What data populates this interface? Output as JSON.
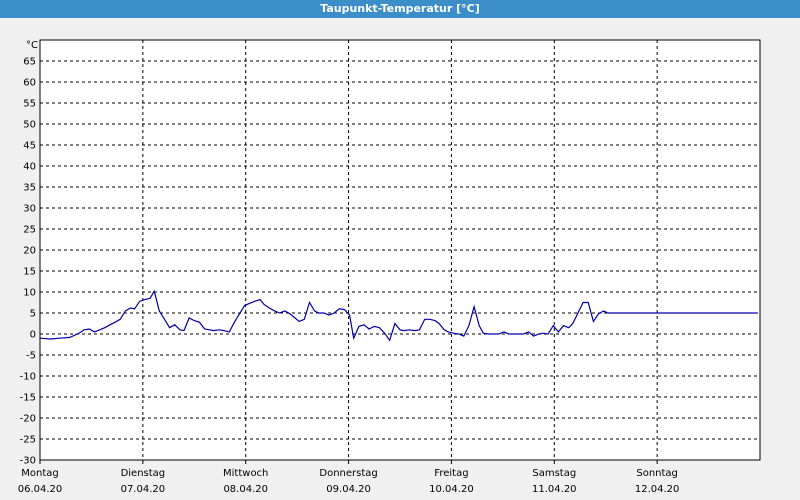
{
  "window": {
    "title": "Taupunkt-Temperatur [°C]"
  },
  "chart_data": {
    "type": "line",
    "title": "Taupunkt-Temperatur [°C]",
    "ylabel": "°C",
    "xlabel": "",
    "ylim": [
      -30,
      70
    ],
    "yticks": [
      -30,
      -25,
      -20,
      -15,
      -10,
      -5,
      0,
      5,
      10,
      15,
      20,
      25,
      30,
      35,
      40,
      45,
      50,
      55,
      60,
      65
    ],
    "xlim": [
      0,
      7
    ],
    "grid": true,
    "line_color": "#0000aa",
    "x_tick_labels": [
      {
        "x": 0,
        "day": "Montag",
        "date": "06.04.20"
      },
      {
        "x": 1,
        "day": "Dienstag",
        "date": "07.04.20"
      },
      {
        "x": 2,
        "day": "Mittwoch",
        "date": "08.04.20"
      },
      {
        "x": 3,
        "day": "Donnerstag",
        "date": "09.04.20"
      },
      {
        "x": 4,
        "day": "Freitag",
        "date": "10.04.20"
      },
      {
        "x": 5,
        "day": "Samstag",
        "date": "11.04.20"
      },
      {
        "x": 6,
        "day": "Sonntag",
        "date": "12.04.20"
      }
    ],
    "series": [
      {
        "x": [
          0.0,
          0.1,
          0.19,
          0.29,
          0.38,
          0.43,
          0.48,
          0.53,
          0.58,
          0.63,
          0.68,
          0.73,
          0.78,
          0.83,
          0.88,
          0.92,
          0.97,
          1.02,
          1.07,
          1.11,
          1.16,
          1.21,
          1.26,
          1.31,
          1.36,
          1.4,
          1.45,
          1.5,
          1.55,
          1.6,
          1.65,
          1.69,
          1.74,
          1.79,
          1.84,
          1.89,
          1.94,
          1.99,
          2.04,
          2.09,
          2.14,
          2.18,
          2.23,
          2.28,
          2.33,
          2.38,
          2.43,
          2.48,
          2.52,
          2.57,
          2.62,
          2.67,
          2.71,
          2.76,
          2.81,
          2.86,
          2.91,
          2.96,
          3.01,
          3.05,
          3.1,
          3.15,
          3.2,
          3.25,
          3.3,
          3.35,
          3.4,
          3.45,
          3.5,
          3.54,
          3.59,
          3.64,
          3.69,
          3.74,
          3.79,
          3.84,
          3.88,
          3.93,
          3.97,
          4.02,
          4.07,
          4.12,
          4.17,
          4.22,
          4.27,
          4.31,
          4.36,
          4.41,
          4.46,
          4.51,
          4.56,
          4.6,
          4.65,
          4.7,
          4.75,
          4.8,
          4.85,
          4.89,
          4.94,
          4.99,
          5.04,
          5.09,
          5.14,
          5.18,
          5.23,
          5.28,
          5.33,
          5.38,
          5.43,
          5.48,
          5.52,
          5.57,
          5.62,
          5.67,
          5.72,
          5.77,
          5.82,
          5.86,
          5.91,
          5.96,
          6.01,
          6.06,
          6.11,
          6.15,
          6.2,
          6.25,
          6.3,
          6.35,
          6.4,
          6.44,
          6.49,
          6.54,
          6.59,
          6.64,
          6.69,
          6.74,
          6.78,
          6.83,
          6.88,
          6.93,
          6.98
        ],
        "y": [
          -1.0,
          -1.2,
          -1.0,
          -0.8,
          0.2,
          1.0,
          1.2,
          0.5,
          1.0,
          1.5,
          2.2,
          2.8,
          3.5,
          5.5,
          6.2,
          6.0,
          7.8,
          8.2,
          8.5,
          10.2,
          5.5,
          3.5,
          1.5,
          2.2,
          1.0,
          0.8,
          3.8,
          3.2,
          2.8,
          1.2,
          1.0,
          0.8,
          1.0,
          0.8,
          0.5,
          2.8,
          4.8,
          6.8,
          7.3,
          7.8,
          8.2,
          7.0,
          6.2,
          5.5,
          5.0,
          5.5,
          4.8,
          3.8,
          3.0,
          3.5,
          7.5,
          5.5,
          5.0,
          5.0,
          4.5,
          5.0,
          6.0,
          5.8,
          4.5,
          -1.0,
          1.8,
          2.2,
          1.2,
          1.8,
          1.5,
          0.2,
          -1.5,
          2.5,
          1.0,
          0.8,
          1.0,
          0.8,
          1.0,
          3.5,
          3.5,
          3.2,
          2.5,
          1.0,
          0.5,
          0.2,
          0.0,
          -0.5,
          2.0,
          6.5,
          2.0,
          0.2,
          0.0,
          0.0,
          0.0,
          0.5,
          0.0,
          0.0,
          0.0,
          0.0,
          0.5,
          -0.5,
          0.0,
          0.2,
          0.0,
          2.0,
          0.5,
          2.0,
          1.5,
          2.5,
          5.0,
          7.5,
          7.5,
          3.0,
          4.8,
          5.5,
          5.0,
          5.0,
          5.0,
          5.0,
          5.0,
          5.0,
          5.0,
          5.0,
          5.0,
          5.0,
          5.0,
          5.0,
          5.0,
          5.0,
          5.0,
          5.0,
          5.0,
          5.0,
          5.0,
          5.0,
          5.0,
          5.0,
          5.0,
          5.0,
          5.0,
          5.0,
          5.0,
          5.0,
          5.0,
          5.0,
          5.0
        ]
      }
    ]
  }
}
